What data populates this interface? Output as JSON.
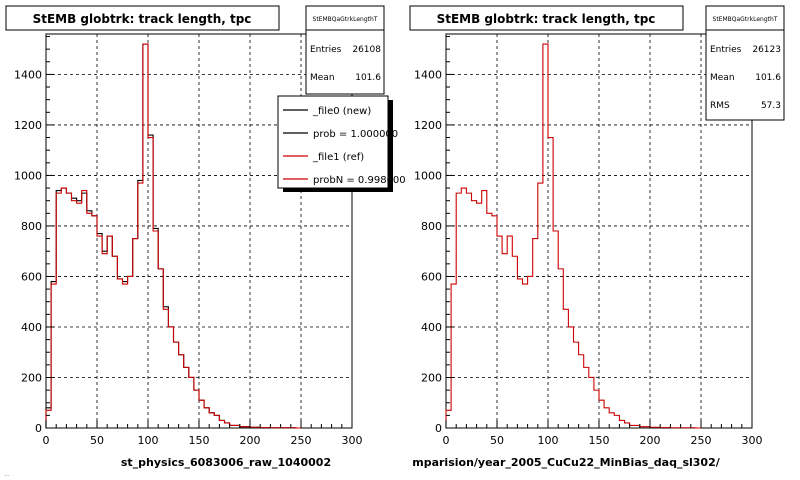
{
  "colors": {
    "new": "#000000",
    "ref": "#cc0000",
    "grid": "#000000",
    "frame": "#000000"
  },
  "chart_data": [
    {
      "type": "histogram",
      "title": "StEMB globtrk: track length, tpc",
      "xlabel": "st_physics_6083006_raw_1040002",
      "xlim": [
        0,
        300
      ],
      "ylim": [
        0,
        1560
      ],
      "xticks": [
        0,
        50,
        100,
        150,
        200,
        250,
        300
      ],
      "yticks": [
        0,
        200,
        400,
        600,
        800,
        1000,
        1200,
        1400
      ],
      "grid": true,
      "stats": {
        "name": "StEMBQaGtrkLengthT",
        "rows": [
          {
            "label": "Entries",
            "value": "26108"
          },
          {
            "label": "Mean",
            "value": "101.6"
          }
        ]
      },
      "legend": {
        "placement": "top-right",
        "entries": [
          {
            "label": "_file0 (new)",
            "color": "#000000"
          },
          {
            "label": "prob = 1.000000",
            "color": "#000000"
          },
          {
            "label": "_file1 (ref)",
            "color": "#cc0000"
          },
          {
            "label": "probN = 0.998600",
            "color": "#cc0000"
          }
        ]
      },
      "bin_width": 5,
      "series": [
        {
          "name": "_file0 (new)",
          "values": [
            80,
            580,
            940,
            950,
            930,
            910,
            900,
            930,
            860,
            840,
            770,
            700,
            760,
            680,
            590,
            580,
            600,
            750,
            980,
            1520,
            1160,
            790,
            630,
            480,
            400,
            340,
            290,
            240,
            200,
            150,
            110,
            80,
            60,
            50,
            30,
            20,
            10,
            10,
            5,
            5,
            3,
            3,
            2,
            2,
            1,
            1,
            1,
            1,
            1,
            0
          ]
        },
        {
          "name": "_file1 (ref)",
          "values": [
            70,
            570,
            930,
            950,
            930,
            900,
            890,
            940,
            850,
            840,
            760,
            690,
            760,
            680,
            590,
            570,
            600,
            750,
            970,
            1520,
            1150,
            780,
            630,
            470,
            400,
            340,
            290,
            240,
            200,
            150,
            110,
            80,
            60,
            50,
            30,
            20,
            10,
            10,
            5,
            5,
            3,
            3,
            2,
            2,
            1,
            1,
            1,
            1,
            1,
            0
          ]
        }
      ]
    },
    {
      "type": "histogram",
      "title": "StEMB globtrk: track length, tpc",
      "xlabel": "mparision/year_2005_CuCu22_MinBias_daq_sl302/",
      "xlim": [
        0,
        300
      ],
      "ylim": [
        0,
        1560
      ],
      "xticks": [
        0,
        50,
        100,
        150,
        200,
        250,
        300
      ],
      "yticks": [
        0,
        200,
        400,
        600,
        800,
        1000,
        1200,
        1400
      ],
      "grid": true,
      "stats": {
        "name": "StEMBQaGtrkLengthT",
        "rows": [
          {
            "label": "Entries",
            "value": "26123"
          },
          {
            "label": "Mean",
            "value": "101.6"
          },
          {
            "label": "RMS",
            "value": "57.3"
          }
        ]
      },
      "bin_width": 5,
      "series": [
        {
          "name": "_file1 (ref)",
          "values": [
            70,
            570,
            930,
            950,
            930,
            900,
            890,
            940,
            850,
            840,
            760,
            690,
            760,
            680,
            590,
            570,
            600,
            750,
            970,
            1520,
            1150,
            780,
            630,
            470,
            400,
            340,
            290,
            240,
            200,
            150,
            110,
            80,
            60,
            50,
            30,
            20,
            10,
            10,
            5,
            5,
            3,
            3,
            2,
            2,
            1,
            1,
            1,
            1,
            1,
            0
          ]
        }
      ]
    }
  ],
  "footer_text": "..."
}
